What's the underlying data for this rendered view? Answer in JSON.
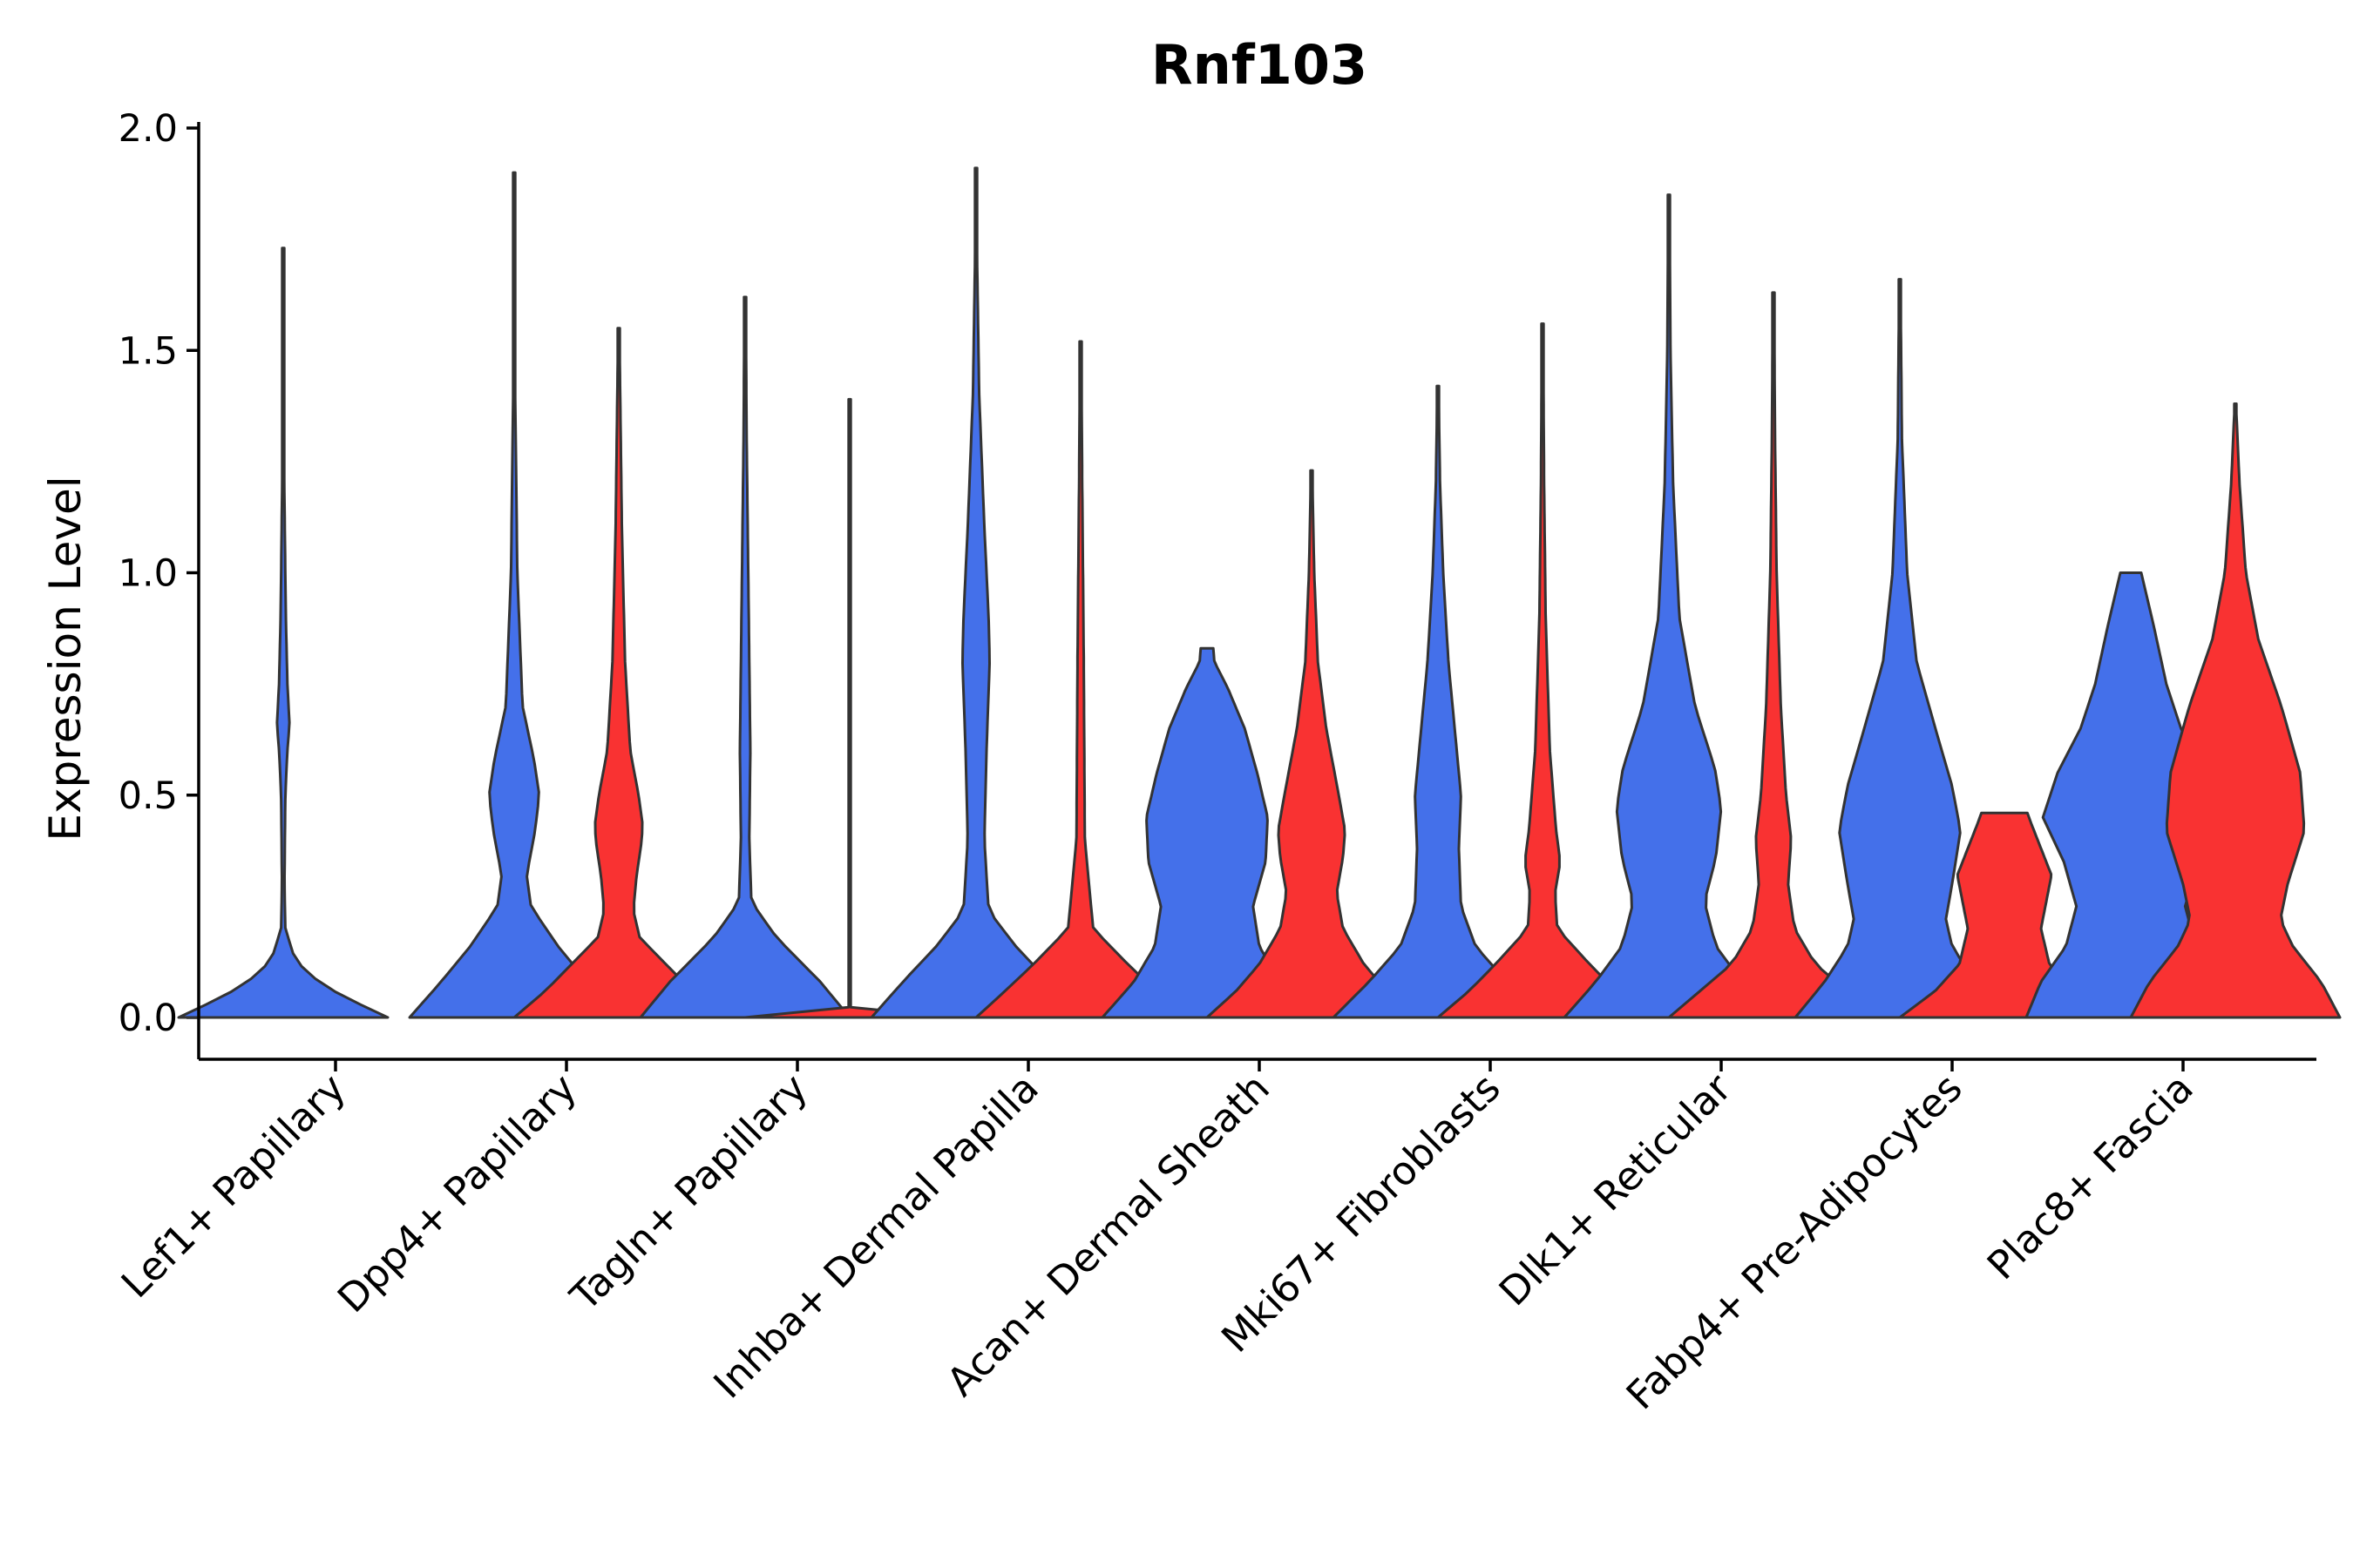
{
  "chart_data": {
    "type": "violin",
    "title": "Rnf103",
    "xlabel": "",
    "ylabel": "Expression Level",
    "ylim": [
      -0.1,
      2.0
    ],
    "yticks": [
      "0.0",
      "0.5",
      "1.0",
      "1.5",
      "2.0"
    ],
    "grid": false,
    "legend": "none",
    "colors": {
      "blue": "#4470EA",
      "red": "#F93232",
      "outline": "#333333"
    },
    "categories": [
      "Lef1+ Papillary",
      "Dpp4+ Papillary",
      "Tagln+ Papillary",
      "Inhba+ Dermal Papilla",
      "Acan+ Dermal Sheath",
      "Mki67+ Fibroblasts",
      "Dlk1+ Reticular",
      "Fabp4+ Pre-Adipocytes",
      "Plac8+ Fascia"
    ],
    "series": [
      {
        "name": "group-blue",
        "color": "#4470EA",
        "violins": [
          {
            "max": 1.73,
            "profile": [
              [
                0,
                1.0
              ],
              [
                0.05,
                0.55
              ],
              [
                0.1,
                0.22
              ],
              [
                0.14,
                0.1
              ],
              [
                0.2,
                0.02
              ],
              [
                0.3,
                0.012
              ],
              [
                0.5,
                0.02
              ],
              [
                0.6,
                0.04
              ],
              [
                0.66,
                0.06
              ],
              [
                0.75,
                0.04
              ],
              [
                0.9,
                0.025
              ],
              [
                1.2,
                0.01
              ],
              [
                1.73,
                0.006
              ]
            ]
          },
          {
            "max": 1.9,
            "profile": [
              [
                0,
                1.0
              ],
              [
                0.08,
                0.7
              ],
              [
                0.16,
                0.42
              ],
              [
                0.25,
                0.16
              ],
              [
                0.32,
                0.12
              ],
              [
                0.42,
                0.2
              ],
              [
                0.5,
                0.24
              ],
              [
                0.58,
                0.19
              ],
              [
                0.7,
                0.08
              ],
              [
                1.0,
                0.03
              ],
              [
                1.4,
                0.01
              ],
              [
                1.9,
                0.006
              ]
            ]
          },
          {
            "max": 1.62,
            "profile": [
              [
                0,
                1.0
              ],
              [
                0.08,
                0.72
              ],
              [
                0.18,
                0.3
              ],
              [
                0.26,
                0.06
              ],
              [
                0.4,
                0.04
              ],
              [
                0.6,
                0.05
              ],
              [
                0.8,
                0.04
              ],
              [
                1.0,
                0.03
              ],
              [
                1.3,
                0.015
              ],
              [
                1.62,
                0.006
              ]
            ]
          },
          {
            "max": 1.91,
            "profile": [
              [
                0,
                1.0
              ],
              [
                0.08,
                0.7
              ],
              [
                0.16,
                0.38
              ],
              [
                0.24,
                0.12
              ],
              [
                0.4,
                0.08
              ],
              [
                0.6,
                0.1
              ],
              [
                0.8,
                0.13
              ],
              [
                0.9,
                0.12
              ],
              [
                1.1,
                0.08
              ],
              [
                1.4,
                0.03
              ],
              [
                1.7,
                0.01
              ],
              [
                1.91,
                0.006
              ]
            ]
          },
          {
            "max": 0.83,
            "profile": [
              [
                0,
                1.0
              ],
              [
                0.08,
                0.7
              ],
              [
                0.16,
                0.5
              ],
              [
                0.25,
                0.44
              ],
              [
                0.35,
                0.56
              ],
              [
                0.45,
                0.58
              ],
              [
                0.55,
                0.48
              ],
              [
                0.65,
                0.36
              ],
              [
                0.74,
                0.2
              ],
              [
                0.8,
                0.07
              ],
              [
                0.83,
                0.06
              ]
            ]
          },
          {
            "max": 1.42,
            "profile": [
              [
                0,
                1.0
              ],
              [
                0.08,
                0.66
              ],
              [
                0.16,
                0.36
              ],
              [
                0.25,
                0.22
              ],
              [
                0.38,
                0.2
              ],
              [
                0.5,
                0.22
              ],
              [
                0.6,
                0.18
              ],
              [
                0.8,
                0.1
              ],
              [
                1.0,
                0.05
              ],
              [
                1.2,
                0.02
              ],
              [
                1.42,
                0.006
              ]
            ]
          },
          {
            "max": 1.85,
            "profile": [
              [
                0,
                1.0
              ],
              [
                0.08,
                0.7
              ],
              [
                0.16,
                0.45
              ],
              [
                0.26,
                0.34
              ],
              [
                0.36,
                0.45
              ],
              [
                0.47,
                0.5
              ],
              [
                0.56,
                0.44
              ],
              [
                0.7,
                0.25
              ],
              [
                0.9,
                0.1
              ],
              [
                1.2,
                0.04
              ],
              [
                1.5,
                0.015
              ],
              [
                1.85,
                0.006
              ]
            ]
          },
          {
            "max": 1.66,
            "profile": [
              [
                0,
                1.0
              ],
              [
                0.08,
                0.72
              ],
              [
                0.16,
                0.5
              ],
              [
                0.22,
                0.44
              ],
              [
                0.3,
                0.5
              ],
              [
                0.42,
                0.58
              ],
              [
                0.52,
                0.5
              ],
              [
                0.65,
                0.34
              ],
              [
                0.8,
                0.16
              ],
              [
                1.0,
                0.07
              ],
              [
                1.3,
                0.02
              ],
              [
                1.66,
                0.006
              ]
            ]
          },
          {
            "max": 1.0,
            "profile": [
              [
                0,
                1.0
              ],
              [
                0.08,
                0.86
              ],
              [
                0.16,
                0.62
              ],
              [
                0.25,
                0.52
              ],
              [
                0.35,
                0.64
              ],
              [
                0.45,
                0.84
              ],
              [
                0.55,
                0.7
              ],
              [
                0.65,
                0.48
              ],
              [
                0.75,
                0.34
              ],
              [
                0.88,
                0.22
              ],
              [
                1.0,
                0.1
              ]
            ]
          }
        ]
      },
      {
        "name": "group-red",
        "color": "#F93232",
        "violins": [
          null,
          {
            "max": 1.55,
            "profile": [
              [
                0,
                1.0
              ],
              [
                0.06,
                0.7
              ],
              [
                0.12,
                0.45
              ],
              [
                0.18,
                0.2
              ],
              [
                0.24,
                0.14
              ],
              [
                0.32,
                0.17
              ],
              [
                0.38,
                0.21
              ],
              [
                0.43,
                0.23
              ],
              [
                0.5,
                0.19
              ],
              [
                0.6,
                0.11
              ],
              [
                0.8,
                0.06
              ],
              [
                1.1,
                0.03
              ],
              [
                1.55,
                0.006
              ]
            ]
          },
          {
            "max": 1.39,
            "profile": [
              [
                0,
                1.0
              ],
              [
                0.004,
                0.5
              ],
              [
                0.01,
                0.0
              ]
            ]
          },
          {
            "max": 1.52,
            "profile": [
              [
                0,
                1.0
              ],
              [
                0.06,
                0.72
              ],
              [
                0.12,
                0.45
              ],
              [
                0.2,
                0.12
              ],
              [
                0.4,
                0.04
              ],
              [
                0.8,
                0.03
              ],
              [
                1.2,
                0.015
              ],
              [
                1.52,
                0.006
              ]
            ]
          },
          {
            "max": 1.23,
            "profile": [
              [
                0,
                1.0
              ],
              [
                0.06,
                0.72
              ],
              [
                0.12,
                0.5
              ],
              [
                0.2,
                0.3
              ],
              [
                0.28,
                0.24
              ],
              [
                0.36,
                0.3
              ],
              [
                0.42,
                0.32
              ],
              [
                0.5,
                0.26
              ],
              [
                0.65,
                0.14
              ],
              [
                0.8,
                0.06
              ],
              [
                1.0,
                0.025
              ],
              [
                1.23,
                0.006
              ]
            ]
          },
          {
            "max": 1.56,
            "profile": [
              [
                0,
                1.0
              ],
              [
                0.06,
                0.7
              ],
              [
                0.12,
                0.45
              ],
              [
                0.2,
                0.14
              ],
              [
                0.28,
                0.12
              ],
              [
                0.35,
                0.17
              ],
              [
                0.42,
                0.13
              ],
              [
                0.6,
                0.07
              ],
              [
                0.9,
                0.03
              ],
              [
                1.2,
                0.015
              ],
              [
                1.56,
                0.006
              ]
            ]
          },
          {
            "max": 1.63,
            "profile": [
              [
                0,
                1.0
              ],
              [
                0.06,
                0.7
              ],
              [
                0.12,
                0.4
              ],
              [
                0.2,
                0.2
              ],
              [
                0.3,
                0.14
              ],
              [
                0.4,
                0.17
              ],
              [
                0.5,
                0.12
              ],
              [
                0.7,
                0.07
              ],
              [
                1.0,
                0.03
              ],
              [
                1.3,
                0.015
              ],
              [
                1.63,
                0.006
              ]
            ]
          },
          {
            "max": 0.46,
            "profile": [
              [
                0,
                1.0
              ],
              [
                0.06,
                0.66
              ],
              [
                0.12,
                0.43
              ],
              [
                0.2,
                0.35
              ],
              [
                0.26,
                0.4
              ],
              [
                0.32,
                0.45
              ],
              [
                0.38,
                0.35
              ],
              [
                0.44,
                0.25
              ],
              [
                0.46,
                0.22
              ]
            ]
          },
          {
            "max": 1.38,
            "profile": [
              [
                0,
                1.0
              ],
              [
                0.08,
                0.82
              ],
              [
                0.16,
                0.55
              ],
              [
                0.22,
                0.43
              ],
              [
                0.3,
                0.5
              ],
              [
                0.42,
                0.66
              ],
              [
                0.55,
                0.62
              ],
              [
                0.7,
                0.44
              ],
              [
                0.85,
                0.22
              ],
              [
                1.0,
                0.1
              ],
              [
                1.2,
                0.04
              ],
              [
                1.38,
                0.006
              ]
            ]
          }
        ]
      }
    ]
  }
}
